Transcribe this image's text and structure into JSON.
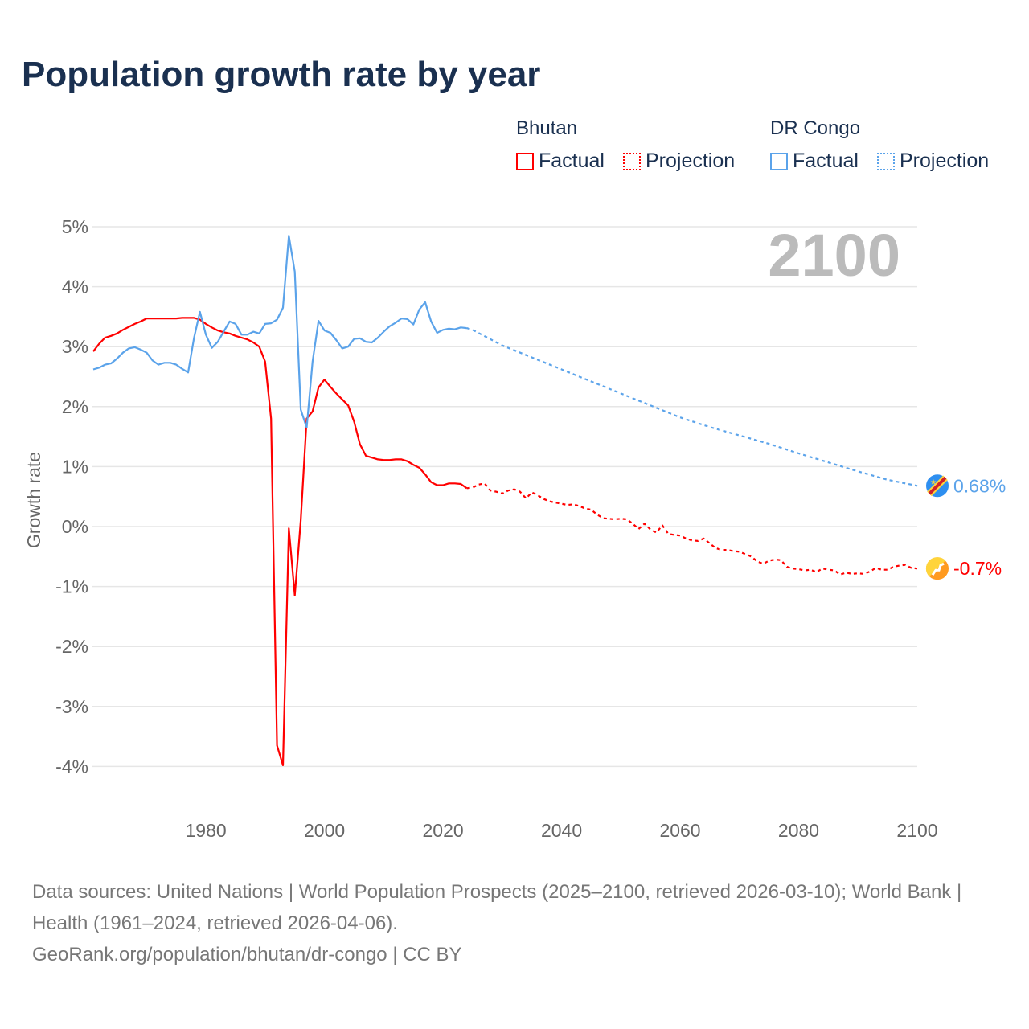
{
  "title": "Population growth rate by year",
  "legend": {
    "groups": [
      {
        "name": "Bhutan",
        "factual": "Factual",
        "projection": "Projection",
        "color": "#ff0000"
      },
      {
        "name": "DR Congo",
        "factual": "Factual",
        "projection": "Projection",
        "color": "#5ba3ea"
      }
    ]
  },
  "year_label": "2100",
  "source_lines": [
    "Data sources: United Nations | World Population Prospects (2025–2100, retrieved 2026-03-10); World Bank | Health (1961–2024, retrieved 2026-04-06).",
    "GeoRank.org/population/bhutan/dr-congo | CC BY"
  ],
  "chart_data": {
    "type": "line",
    "title": "Population growth rate by year",
    "xlabel": "",
    "ylabel": "Growth rate",
    "xlim": [
      1961,
      2100
    ],
    "ylim": [
      -5,
      5
    ],
    "xticks": [
      1980,
      2000,
      2020,
      2040,
      2060,
      2080,
      2100
    ],
    "yticks": [
      5,
      4,
      3,
      2,
      1,
      0,
      -1,
      -2,
      -3,
      -4
    ],
    "ytick_labels": [
      "5%",
      "4%",
      "3%",
      "2%",
      "1%",
      "0%",
      "-1%",
      "-2%",
      "-3%",
      "-4%"
    ],
    "grid": true,
    "end_labels": {
      "Bhutan": "-0.7%",
      "DR Congo": "0.68%"
    },
    "series": [
      {
        "name": "Bhutan",
        "kind": "factual",
        "color": "#ff0000",
        "x0": 1961,
        "y": [
          2.92,
          3.05,
          3.15,
          3.18,
          3.22,
          3.28,
          3.33,
          3.38,
          3.42,
          3.47,
          3.47,
          3.47,
          3.47,
          3.47,
          3.47,
          3.48,
          3.48,
          3.48,
          3.45,
          3.38,
          3.32,
          3.27,
          3.24,
          3.22,
          3.18,
          3.15,
          3.12,
          3.07,
          3.0,
          2.75,
          1.8,
          -3.65,
          -3.98,
          -0.03,
          -1.15,
          0.1,
          1.8,
          1.92,
          2.32,
          2.45,
          2.33,
          2.22,
          2.12,
          2.02,
          1.75,
          1.37,
          1.18,
          1.15,
          1.12,
          1.11,
          1.11,
          1.12,
          1.12,
          1.09,
          1.03,
          0.98,
          0.87,
          0.74,
          0.69,
          0.69,
          0.72,
          0.72,
          0.71,
          0.64
        ]
      },
      {
        "name": "Bhutan",
        "kind": "projection",
        "color": "#ff0000",
        "x0": 2024,
        "y": [
          0.64,
          0.65,
          0.7,
          0.72,
          0.6,
          0.58,
          0.55,
          0.6,
          0.62,
          0.58,
          0.47,
          0.57,
          0.52,
          0.46,
          0.42,
          0.4,
          0.38,
          0.36,
          0.37,
          0.34,
          0.3,
          0.28,
          0.2,
          0.14,
          0.13,
          0.12,
          0.13,
          0.12,
          0.05,
          -0.04,
          0.05,
          -0.05,
          -0.1,
          0.02,
          -0.12,
          -0.14,
          -0.15,
          -0.2,
          -0.23,
          -0.24,
          -0.2,
          -0.28,
          -0.36,
          -0.39,
          -0.39,
          -0.41,
          -0.42,
          -0.46,
          -0.5,
          -0.58,
          -0.62,
          -0.57,
          -0.55,
          -0.56,
          -0.67,
          -0.7,
          -0.71,
          -0.73,
          -0.72,
          -0.76,
          -0.7,
          -0.72,
          -0.73,
          -0.8,
          -0.77,
          -0.79,
          -0.78,
          -0.79,
          -0.75,
          -0.69,
          -0.72,
          -0.72,
          -0.67,
          -0.65,
          -0.64,
          -0.69,
          -0.7
        ]
      },
      {
        "name": "DR Congo",
        "kind": "factual",
        "color": "#5ba3ea",
        "x0": 1961,
        "y": [
          2.62,
          2.65,
          2.7,
          2.72,
          2.8,
          2.9,
          2.97,
          2.99,
          2.95,
          2.9,
          2.77,
          2.7,
          2.73,
          2.73,
          2.7,
          2.63,
          2.57,
          3.15,
          3.58,
          3.2,
          2.98,
          3.08,
          3.25,
          3.42,
          3.38,
          3.2,
          3.2,
          3.25,
          3.22,
          3.38,
          3.39,
          3.45,
          3.65,
          4.85,
          4.25,
          1.95,
          1.65,
          2.75,
          3.43,
          3.27,
          3.23,
          3.11,
          2.97,
          3.0,
          3.13,
          3.14,
          3.08,
          3.07,
          3.15,
          3.25,
          3.34,
          3.4,
          3.47,
          3.46,
          3.37,
          3.62,
          3.74,
          3.42,
          3.23,
          3.28,
          3.3,
          3.29,
          3.32,
          3.31
        ]
      },
      {
        "name": "DR Congo",
        "kind": "projection",
        "color": "#5ba3ea",
        "x": [
          2024,
          2025,
          2030,
          2035,
          2040,
          2045,
          2050,
          2055,
          2060,
          2065,
          2070,
          2075,
          2080,
          2085,
          2090,
          2095,
          2100
        ],
        "y": [
          3.31,
          3.28,
          3.02,
          2.82,
          2.62,
          2.42,
          2.22,
          2.02,
          1.82,
          1.66,
          1.52,
          1.38,
          1.22,
          1.07,
          0.92,
          0.78,
          0.68
        ]
      }
    ]
  }
}
